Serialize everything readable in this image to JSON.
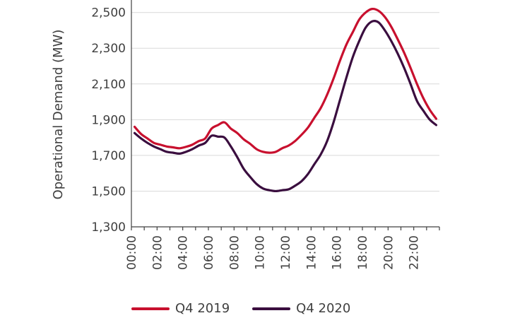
{
  "chart_data": {
    "type": "line",
    "ylabel": "Operational Demand (MW)",
    "xlabel": "",
    "ylim": [
      1300,
      2570
    ],
    "yticks": [
      1300,
      1500,
      1700,
      1900,
      2100,
      2300,
      2500
    ],
    "ytick_labels": [
      "1,300",
      "1,500",
      "1,700",
      "1,900",
      "2,100",
      "2,300",
      "2,500"
    ],
    "xtick_labels": [
      "00:00",
      "02:00",
      "04:00",
      "06:00",
      "08:00",
      "10:00",
      "12:00",
      "14:00",
      "16:00",
      "18:00",
      "20:00",
      "22:00"
    ],
    "x_hours": [
      0,
      0.5,
      1,
      1.5,
      2,
      2.5,
      3,
      3.5,
      4,
      4.5,
      5,
      5.5,
      6,
      6.5,
      7,
      7.5,
      8,
      8.5,
      9,
      9.5,
      10,
      10.5,
      11,
      11.5,
      12,
      12.5,
      13,
      13.5,
      14,
      14.5,
      15,
      15.5,
      16,
      16.5,
      17,
      17.5,
      18,
      18.5,
      19,
      19.5,
      20,
      20.5,
      21,
      21.5,
      22,
      22.5,
      23,
      23.5
    ],
    "grid": true,
    "legend_position": "bottom",
    "series": [
      {
        "name": "Q4 2019",
        "color": "#c8102e",
        "values": [
          1860,
          1820,
          1795,
          1770,
          1760,
          1750,
          1745,
          1740,
          1748,
          1760,
          1780,
          1795,
          1850,
          1870,
          1885,
          1850,
          1825,
          1790,
          1765,
          1735,
          1720,
          1715,
          1720,
          1740,
          1755,
          1780,
          1815,
          1855,
          1910,
          1965,
          2040,
          2130,
          2230,
          2320,
          2390,
          2460,
          2500,
          2520,
          2510,
          2475,
          2420,
          2350,
          2275,
          2190,
          2100,
          2020,
          1955,
          1905
        ]
      },
      {
        "name": "Q4 2020",
        "color": "#3a0e3f",
        "values": [
          1825,
          1795,
          1770,
          1750,
          1735,
          1720,
          1715,
          1710,
          1720,
          1735,
          1755,
          1770,
          1810,
          1805,
          1800,
          1750,
          1690,
          1625,
          1580,
          1540,
          1515,
          1505,
          1500,
          1505,
          1510,
          1530,
          1555,
          1595,
          1650,
          1705,
          1780,
          1885,
          2010,
          2135,
          2250,
          2340,
          2415,
          2450,
          2445,
          2400,
          2340,
          2270,
          2190,
          2100,
          2005,
          1950,
          1900,
          1870
        ]
      }
    ]
  }
}
